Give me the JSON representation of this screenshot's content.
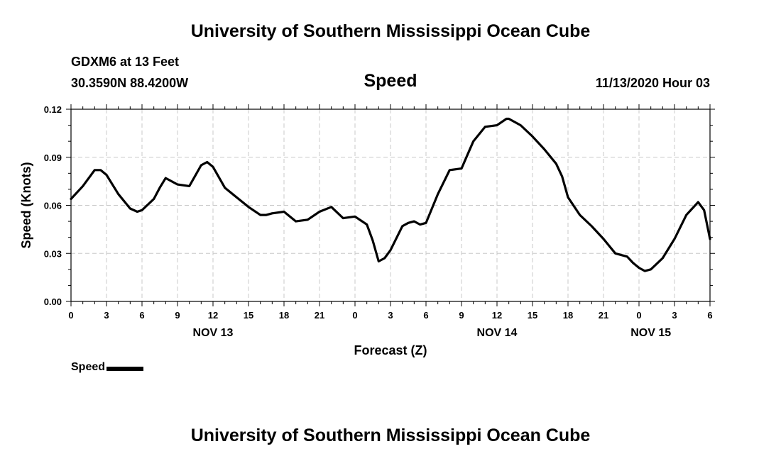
{
  "header": {
    "title": "University of Southern Mississippi Ocean Cube",
    "station": "GDXM6 at 13 Feet",
    "coordinates": "30.3590N 88.4200W",
    "datetime": "11/13/2020 Hour 03"
  },
  "footer": {
    "title": "University of Southern Mississippi Ocean Cube"
  },
  "legend": {
    "label": "Speed",
    "color": "#000000"
  },
  "chart_data": {
    "type": "line",
    "title": "Speed",
    "xlabel": "Forecast (Z)",
    "ylabel": "Speed (Knots)",
    "xlim": [
      0,
      54
    ],
    "ylim": [
      0,
      0.12
    ],
    "grid": true,
    "legend_position": "bottom-left",
    "x_tick_labels": [
      "0",
      "3",
      "6",
      "9",
      "12",
      "15",
      "18",
      "21",
      "0",
      "3",
      "6",
      "9",
      "12",
      "15",
      "18",
      "21",
      "0",
      "3",
      "6"
    ],
    "y_tick_labels": [
      "0.00",
      "0.03",
      "0.06",
      "0.09",
      "0.12"
    ],
    "y_ticks": [
      0,
      0.03,
      0.06,
      0.09,
      0.12
    ],
    "day_labels": [
      {
        "label": "NOV 13",
        "x": 12
      },
      {
        "label": "NOV 14",
        "x": 36
      },
      {
        "label": "NOV 15",
        "x": 49
      }
    ],
    "series": [
      {
        "name": "Speed",
        "color": "#000000",
        "x": [
          0,
          1,
          2,
          2.5,
          3,
          4,
          5,
          5.6,
          6,
          7,
          7.5,
          8,
          9,
          10,
          11,
          11.5,
          12,
          13,
          14,
          15,
          16,
          16.5,
          17,
          18,
          19,
          20,
          21,
          22,
          23,
          24,
          25,
          25.5,
          26,
          26.5,
          27,
          28,
          28.5,
          29,
          29.5,
          30,
          31,
          32,
          33,
          34,
          35,
          36,
          36.8,
          37,
          38,
          39,
          40,
          41,
          41.5,
          42,
          43,
          44,
          45,
          46,
          47,
          47.5,
          48,
          48.5,
          49,
          50,
          51,
          52,
          53,
          53.5,
          54
        ],
        "y": [
          0.064,
          0.072,
          0.082,
          0.082,
          0.079,
          0.067,
          0.058,
          0.056,
          0.057,
          0.064,
          0.071,
          0.077,
          0.073,
          0.072,
          0.085,
          0.087,
          0.084,
          0.071,
          0.065,
          0.059,
          0.054,
          0.054,
          0.055,
          0.056,
          0.05,
          0.051,
          0.056,
          0.059,
          0.052,
          0.053,
          0.048,
          0.038,
          0.025,
          0.027,
          0.032,
          0.047,
          0.049,
          0.05,
          0.048,
          0.049,
          0.067,
          0.082,
          0.083,
          0.1,
          0.109,
          0.11,
          0.114,
          0.114,
          0.11,
          0.103,
          0.095,
          0.086,
          0.078,
          0.065,
          0.054,
          0.047,
          0.039,
          0.03,
          0.028,
          0.024,
          0.021,
          0.019,
          0.02,
          0.027,
          0.039,
          0.054,
          0.062,
          0.057,
          0.039
        ]
      }
    ]
  }
}
